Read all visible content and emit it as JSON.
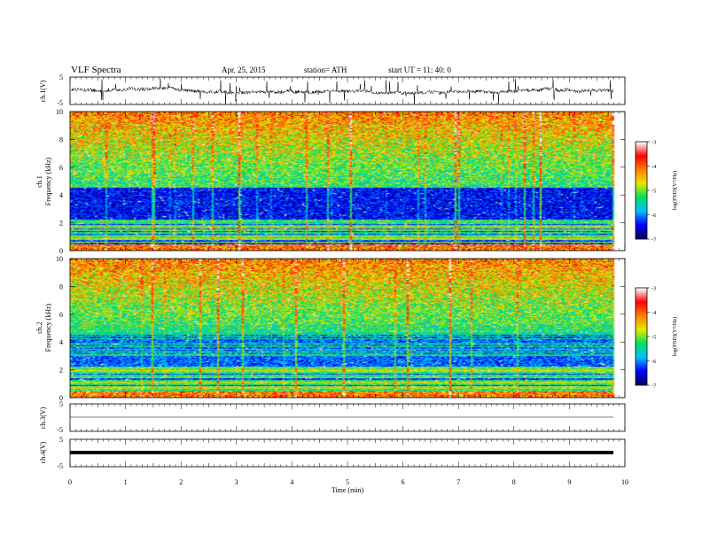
{
  "header": {
    "title": "VLF  Spectra",
    "date": "Apr. 25, 2015",
    "station": "station= ATH",
    "start": "start  UT  =   11: 40: 0"
  },
  "chart_data": [
    {
      "type": "line",
      "name": "ch1-waveform",
      "ylabel": "ch.1(V)",
      "yticks": [
        "5",
        "-5"
      ],
      "ylim": [
        -5,
        5
      ]
    },
    {
      "type": "heatmap",
      "name": "ch1-spectrogram",
      "ylabel_top": "ch.1",
      "ylabel": "Frequency  (kHz)",
      "yticks": [
        "0",
        "2",
        "4",
        "6",
        "8",
        "10"
      ],
      "ylim": [
        0,
        10
      ],
      "colorbar": {
        "label": "log(PSD)(V²/Hz)",
        "ticks": [
          "-3",
          "-4",
          "-5",
          "-6",
          "-7"
        ],
        "range": [
          -7,
          -3
        ],
        "colors": [
          "#000060",
          "#0000ff",
          "#00c0ff",
          "#00e060",
          "#e8e800",
          "#ff8000",
          "#ff0000",
          "#ffffff"
        ]
      }
    },
    {
      "type": "heatmap",
      "name": "ch2-spectrogram",
      "ylabel_top": "ch.2",
      "ylabel": "Frequency  (kHz)",
      "yticks": [
        "0",
        "2",
        "4",
        "6",
        "8",
        "10"
      ],
      "ylim": [
        0,
        10
      ],
      "colorbar": {
        "label": "log(PSD)(V²/Hz)",
        "ticks": [
          "-3",
          "-4",
          "-5",
          "-6",
          "-7"
        ],
        "range": [
          -7,
          -3
        ]
      }
    },
    {
      "type": "line",
      "name": "ch3-waveform",
      "ylabel": "ch.3(V)",
      "yticks": [
        "5",
        "-5"
      ],
      "ylim": [
        -5,
        5
      ]
    },
    {
      "type": "line",
      "name": "ch4-waveform",
      "ylabel": "ch.4(V)",
      "yticks": [
        "5",
        "-5"
      ],
      "ylim": [
        -5,
        5
      ]
    }
  ],
  "xaxis": {
    "label": "Time  (min)",
    "ticks": [
      "0",
      "1",
      "2",
      "3",
      "4",
      "5",
      "6",
      "7",
      "8",
      "9",
      "10"
    ],
    "xlim": [
      0,
      10
    ],
    "data_end": 9.8
  }
}
